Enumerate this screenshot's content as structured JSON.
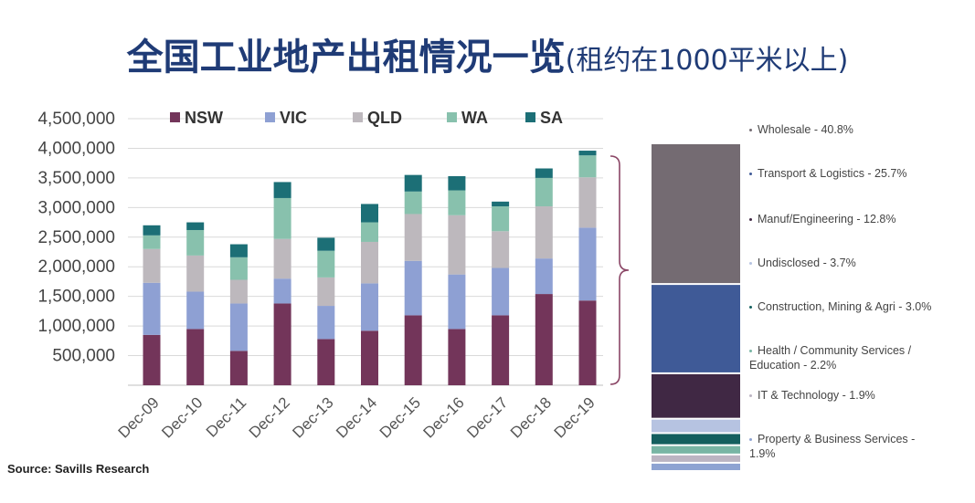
{
  "title": "全国工业地产出租情况一览",
  "subtitle": "(租约在1000平米以上)",
  "source": "Source: Savills Research",
  "chart_data": [
    {
      "type": "bar",
      "stacked": true,
      "categories": [
        "Dec-09",
        "Dec-10",
        "Dec-11",
        "Dec-12",
        "Dec-13",
        "Dec-14",
        "Dec-15",
        "Dec-16",
        "Dec-17",
        "Dec-18",
        "Dec-19"
      ],
      "ylim": [
        0,
        4500000
      ],
      "yticks": [
        "500,000",
        "1,000,000",
        "1,500,000",
        "2,000,000",
        "2,500,000",
        "3,000,000",
        "3,500,000",
        "4,000,000",
        "4,500,000"
      ],
      "ytick_values": [
        500000,
        1000000,
        1500000,
        2000000,
        2500000,
        3000000,
        3500000,
        4000000,
        4500000
      ],
      "grid": true,
      "legend_position": "top",
      "series": [
        {
          "name": "NSW",
          "color": "#73355a",
          "values": [
            850000,
            950000,
            580000,
            1380000,
            780000,
            920000,
            1180000,
            950000,
            1180000,
            1540000,
            1430000
          ]
        },
        {
          "name": "VIC",
          "color": "#8ea0d3",
          "values": [
            880000,
            630000,
            800000,
            420000,
            560000,
            800000,
            920000,
            920000,
            800000,
            600000,
            1230000
          ]
        },
        {
          "name": "QLD",
          "color": "#bdb8bd",
          "values": [
            570000,
            610000,
            400000,
            670000,
            480000,
            700000,
            790000,
            1000000,
            620000,
            880000,
            850000
          ]
        },
        {
          "name": "WA",
          "color": "#88c1ad",
          "values": [
            230000,
            430000,
            380000,
            690000,
            450000,
            330000,
            380000,
            420000,
            420000,
            480000,
            370000
          ]
        },
        {
          "name": "SA",
          "color": "#1c6f76",
          "values": [
            170000,
            130000,
            220000,
            270000,
            220000,
            310000,
            280000,
            240000,
            80000,
            160000,
            80000
          ]
        }
      ]
    },
    {
      "type": "bar",
      "stacked": true,
      "categories": [
        "Total"
      ],
      "unit": "%",
      "series": [
        {
          "name": "Wholesale - 40.8%",
          "color": "#746b72",
          "value": 40.8
        },
        {
          "name": "Transport & Logistics - 25.7%",
          "color": "#3f5a97",
          "value": 25.7
        },
        {
          "name": "Manuf/Engineering - 12.8%",
          "color": "#402844",
          "value": 12.8
        },
        {
          "name": "Undisclosed - 3.7%",
          "color": "#b6c3e1",
          "value": 3.7
        },
        {
          "name": "Construction, Mining & Agri - 3.0%",
          "color": "#145f5e",
          "value": 3.0
        },
        {
          "name": "Health / Community Services / Education - 2.2%",
          "color": "#78b5a4",
          "value": 2.2
        },
        {
          "name": "IT & Technology - 1.9%",
          "color": "#bbb4c2",
          "value": 1.9
        },
        {
          "name": "Property & Business Services - 1.9%",
          "color": "#8ea3d2",
          "value": 1.9
        }
      ]
    }
  ],
  "sectors": [
    {
      "label": "Wholesale - 40.8%",
      "dot_color": "#746b72"
    },
    {
      "label": "Transport & Logistics - 25.7%",
      "dot_color": "#3f5a97"
    },
    {
      "label": "Manuf/Engineering - 12.8%",
      "dot_color": "#402844"
    },
    {
      "label": "Undisclosed - 3.7%",
      "dot_color": "#b6c3e1"
    },
    {
      "label": "Construction, Mining & Agri - 3.0%",
      "dot_color": "#145f5e"
    },
    {
      "label": "Health / Community Services / Education - 2.2%",
      "dot_color": "#78b5a4"
    },
    {
      "label": "IT & Technology - 1.9%",
      "dot_color": "#bbb4c2"
    },
    {
      "label": "Property & Business Services - 1.9%",
      "dot_color": "#8ea3d2"
    }
  ]
}
